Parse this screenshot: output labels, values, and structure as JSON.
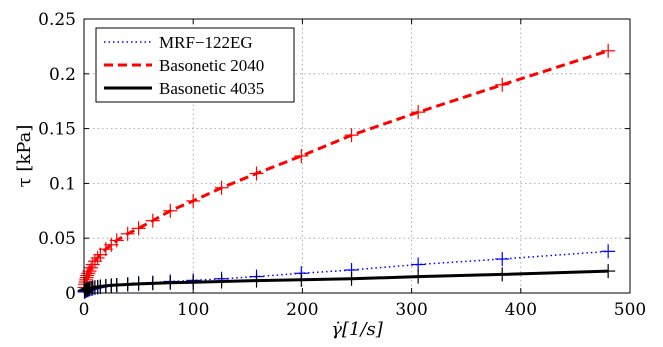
{
  "chart_data": {
    "type": "line",
    "xlabel": "γ̇[1/s]",
    "ylabel": "τ [kPa]",
    "xlim": [
      0,
      500
    ],
    "ylim": [
      0,
      0.25
    ],
    "xticks": [
      0,
      100,
      200,
      300,
      400,
      500
    ],
    "yticks": [
      0,
      0.05,
      0.1,
      0.15,
      0.2,
      0.25
    ],
    "xtick_labels": [
      "0",
      "100",
      "200",
      "300",
      "400",
      "500"
    ],
    "ytick_labels": [
      "0",
      "0.05",
      "0.1",
      "0.15",
      "0.2",
      "0.25"
    ],
    "grid": true,
    "legend_position": "top-left",
    "series": [
      {
        "name": "MRF−122EG",
        "color": "#0000ff",
        "line_style": "dotted",
        "marker": "+",
        "x": [
          0.5,
          1,
          2,
          3,
          4,
          5,
          6.5,
          8,
          10,
          12.5,
          15,
          20,
          25,
          30,
          40,
          50,
          63,
          79,
          100,
          126,
          158,
          199,
          245,
          306,
          383,
          480
        ],
        "y": [
          0.001,
          0.0015,
          0.002,
          0.0025,
          0.003,
          0.0033,
          0.0036,
          0.004,
          0.0045,
          0.005,
          0.0055,
          0.006,
          0.0065,
          0.007,
          0.008,
          0.009,
          0.0095,
          0.0105,
          0.0115,
          0.013,
          0.015,
          0.018,
          0.021,
          0.026,
          0.031,
          0.038
        ]
      },
      {
        "name": "Basonetic 2040",
        "color": "#ff0000",
        "line_style": "dashed",
        "marker": "+",
        "x": [
          0.5,
          1,
          1.5,
          2,
          2.5,
          3,
          4,
          5,
          6.5,
          8,
          10,
          12.5,
          15,
          20,
          25,
          30,
          40,
          50,
          63,
          79,
          100,
          126,
          158,
          199,
          245,
          306,
          383,
          480
        ],
        "y": [
          0.005,
          0.008,
          0.01,
          0.012,
          0.014,
          0.016,
          0.018,
          0.02,
          0.023,
          0.026,
          0.029,
          0.032,
          0.035,
          0.04,
          0.044,
          0.048,
          0.054,
          0.059,
          0.066,
          0.075,
          0.084,
          0.096,
          0.109,
          0.125,
          0.144,
          0.165,
          0.19,
          0.221
        ]
      },
      {
        "name": "Basonetic 4035",
        "color": "#000000",
        "line_style": "solid",
        "marker": "+",
        "x": [
          0.5,
          1,
          2,
          3,
          4,
          5,
          6.5,
          8,
          10,
          12.5,
          15,
          20,
          25,
          30,
          40,
          50,
          63,
          79,
          100,
          126,
          158,
          199,
          245,
          306,
          383,
          480
        ],
        "y": [
          0.002,
          0.0025,
          0.003,
          0.0035,
          0.004,
          0.0043,
          0.0046,
          0.005,
          0.0053,
          0.0056,
          0.006,
          0.0065,
          0.007,
          0.0073,
          0.0078,
          0.0083,
          0.0088,
          0.0093,
          0.0098,
          0.0105,
          0.0113,
          0.012,
          0.013,
          0.015,
          0.017,
          0.02
        ]
      }
    ]
  }
}
